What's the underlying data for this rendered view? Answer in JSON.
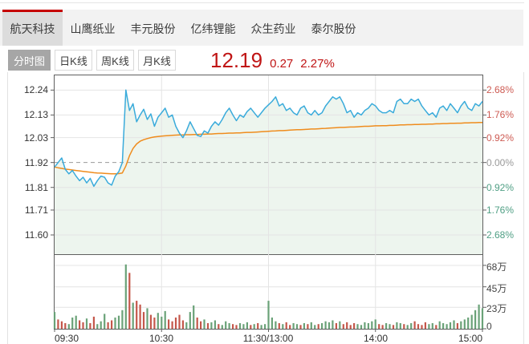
{
  "stock_tabs": {
    "items": [
      {
        "label": "航天科技",
        "active": true
      },
      {
        "label": "山鹰纸业",
        "active": false
      },
      {
        "label": "丰元股份",
        "active": false
      },
      {
        "label": "亿纬锂能",
        "active": false
      },
      {
        "label": "众生药业",
        "active": false
      },
      {
        "label": "泰尔股份",
        "active": false
      }
    ]
  },
  "chart_toolbar": {
    "tabs": [
      {
        "label": "分时图",
        "active": true
      },
      {
        "label": "日K线",
        "active": false
      },
      {
        "label": "周K线",
        "active": false
      },
      {
        "label": "月K线",
        "active": false
      }
    ],
    "price": "12.19",
    "change": "0.27",
    "change_pct": "2.27%"
  },
  "colors": {
    "up_red": "#c01515",
    "pct_red": "#cd5a52",
    "pct_green": "#4f9f84",
    "pct_gray": "#999999",
    "price_line": "#3aabdb",
    "avg_line": "#ef8c1d",
    "area_fill": "#edf5ee",
    "vol_up": "#6aa278",
    "vol_down": "#c4574b",
    "tab_accent": "#c60000",
    "grid": "#e4e4e4",
    "axis": "#5f5f5f",
    "dash_line": "#9a9a9a"
  },
  "chart_data": {
    "type": "line",
    "title": "航天科技 分时图",
    "prev_close": 11.92,
    "y_range": [
      11.515,
      12.305
    ],
    "left_axis_labels": [
      "12.24",
      "12.13",
      "12.03",
      "11.92",
      "11.81",
      "11.71",
      "11.60"
    ],
    "right_axis_labels": [
      {
        "label": "2.68%",
        "color": "#cd5a52"
      },
      {
        "label": "1.76%",
        "color": "#cd5a52"
      },
      {
        "label": "0.92%",
        "color": "#cd5a52"
      },
      {
        "label": "0.00%",
        "color": "#999999"
      },
      {
        "label": "0.92%",
        "color": "#4f9f84"
      },
      {
        "label": "1.76%",
        "color": "#4f9f84"
      },
      {
        "label": "2.68%",
        "color": "#4f9f84"
      }
    ],
    "x_labels": [
      "09:30",
      "10:30",
      "11:30/13:00",
      "14:00",
      "15:00"
    ],
    "volume_axis_labels": [
      "68万",
      "45万",
      "23万",
      "0"
    ],
    "volume_axis_values": [
      68,
      45,
      23,
      0
    ],
    "volume_max": 80,
    "volume_unit": "万",
    "series": [
      {
        "name": "price",
        "color": "#3aabdb",
        "values": [
          11.9,
          11.92,
          11.94,
          11.89,
          11.87,
          11.885,
          11.86,
          11.84,
          11.855,
          11.83,
          11.85,
          11.815,
          11.84,
          11.86,
          11.855,
          11.83,
          11.82,
          11.86,
          11.88,
          11.92,
          12.24,
          12.15,
          12.18,
          12.1,
          12.13,
          12.155,
          12.11,
          12.135,
          12.08,
          12.12,
          12.14,
          12.16,
          12.12,
          12.13,
          12.08,
          12.05,
          12.03,
          12.06,
          12.1,
          12.07,
          12.04,
          12.035,
          12.06,
          12.05,
          12.08,
          12.1,
          12.085,
          12.11,
          12.14,
          12.16,
          12.13,
          12.105,
          12.13,
          12.12,
          12.145,
          12.16,
          12.14,
          12.12,
          12.14,
          12.16,
          12.175,
          12.19,
          12.21,
          12.17,
          12.18,
          12.15,
          12.16,
          12.14,
          12.13,
          12.16,
          12.17,
          12.14,
          12.13,
          12.15,
          12.13,
          12.14,
          12.17,
          12.19,
          12.21,
          12.2,
          12.21,
          12.18,
          12.14,
          12.15,
          12.12,
          12.14,
          12.13,
          12.15,
          12.16,
          12.18,
          12.17,
          12.15,
          12.14,
          12.14,
          12.15,
          12.14,
          12.19,
          12.2,
          12.18,
          12.18,
          12.2,
          12.19,
          12.2,
          12.17,
          12.15,
          12.13,
          12.14,
          12.12,
          12.16,
          12.17,
          12.15,
          12.18,
          12.16,
          12.14,
          12.17,
          12.19,
          12.16,
          12.15,
          12.18,
          12.17,
          12.19
        ]
      },
      {
        "name": "average",
        "color": "#ef8c1d",
        "values": [
          11.9,
          11.897,
          11.894,
          11.891,
          11.889,
          11.887,
          11.885,
          11.883,
          11.881,
          11.879,
          11.877,
          11.875,
          11.874,
          11.873,
          11.872,
          11.871,
          11.87,
          11.87,
          11.871,
          11.874,
          11.905,
          11.95,
          11.982,
          12.002,
          12.014,
          12.021,
          12.026,
          12.03,
          12.033,
          12.035,
          12.037,
          12.038,
          12.039,
          12.04,
          12.041,
          12.042,
          12.042,
          12.043,
          12.043,
          12.044,
          12.044,
          12.045,
          12.045,
          12.046,
          12.046,
          12.047,
          12.048,
          12.048,
          12.049,
          12.05,
          12.05,
          12.051,
          12.051,
          12.052,
          12.053,
          12.053,
          12.054,
          12.055,
          12.056,
          12.057,
          12.058,
          12.059,
          12.06,
          12.061,
          12.061,
          12.062,
          12.063,
          12.064,
          12.065,
          12.065,
          12.066,
          12.067,
          12.068,
          12.068,
          12.069,
          12.07,
          12.071,
          12.072,
          12.073,
          12.074,
          12.075,
          12.075,
          12.076,
          12.077,
          12.077,
          12.078,
          12.079,
          12.08,
          12.08,
          12.081,
          12.082,
          12.082,
          12.083,
          12.083,
          12.084,
          12.084,
          12.085,
          12.086,
          12.086,
          12.087,
          12.087,
          12.088,
          12.088,
          12.089,
          12.089,
          12.09,
          12.09,
          12.091,
          12.091,
          12.092,
          12.092,
          12.093,
          12.093,
          12.094,
          12.094,
          12.095,
          12.095,
          12.096,
          12.096,
          12.097,
          12.097
        ]
      }
    ],
    "volume": {
      "values": [
        18,
        10,
        8,
        6,
        5,
        12,
        14,
        9,
        7,
        11,
        6,
        13,
        5,
        8,
        16,
        7,
        9,
        12,
        14,
        20,
        69,
        60,
        28,
        30,
        26,
        18,
        22,
        15,
        12,
        17,
        13,
        19,
        10,
        8,
        12,
        15,
        9,
        7,
        18,
        25,
        12,
        8,
        10,
        6,
        7,
        9,
        5,
        4,
        8,
        6,
        5,
        4,
        6,
        5,
        7,
        4,
        5,
        6,
        4,
        5,
        30,
        12,
        8,
        6,
        5,
        7,
        4,
        6,
        5,
        4,
        6,
        5,
        7,
        4,
        5,
        6,
        8,
        7,
        9,
        6,
        8,
        5,
        7,
        4,
        6,
        5,
        4,
        7,
        6,
        8,
        10,
        5,
        4,
        6,
        5,
        4,
        7,
        6,
        5,
        4,
        6,
        8,
        5,
        4,
        7,
        5,
        6,
        4,
        8,
        6,
        5,
        7,
        9,
        6,
        8,
        10,
        12,
        15,
        20,
        26,
        22
      ],
      "dirs": [
        "g",
        "r",
        "r",
        "r",
        "g",
        "g",
        "g",
        "r",
        "r",
        "g",
        "r",
        "r",
        "g",
        "g",
        "g",
        "r",
        "r",
        "g",
        "g",
        "g",
        "g",
        "r",
        "g",
        "r",
        "r",
        "r",
        "g",
        "r",
        "r",
        "g",
        "g",
        "g",
        "r",
        "r",
        "r",
        "r",
        "r",
        "g",
        "g",
        "g",
        "r",
        "r",
        "g",
        "r",
        "g",
        "g",
        "r",
        "g",
        "g",
        "g",
        "r",
        "r",
        "g",
        "g",
        "g",
        "r",
        "g",
        "r",
        "g",
        "g",
        "g",
        "g",
        "g",
        "r",
        "g",
        "r",
        "r",
        "g",
        "g",
        "r",
        "g",
        "r",
        "g",
        "g",
        "r",
        "g",
        "g",
        "g",
        "g",
        "r",
        "g",
        "r",
        "r",
        "r",
        "r",
        "g",
        "g",
        "g",
        "g",
        "g",
        "g",
        "r",
        "r",
        "g",
        "g",
        "r",
        "g",
        "g",
        "r",
        "g",
        "g",
        "r",
        "r",
        "r",
        "r",
        "g",
        "g",
        "r",
        "g",
        "g",
        "g",
        "g",
        "g",
        "r",
        "g",
        "g",
        "g",
        "g",
        "g",
        "g",
        "g"
      ]
    },
    "grid": true,
    "legend": "none"
  }
}
